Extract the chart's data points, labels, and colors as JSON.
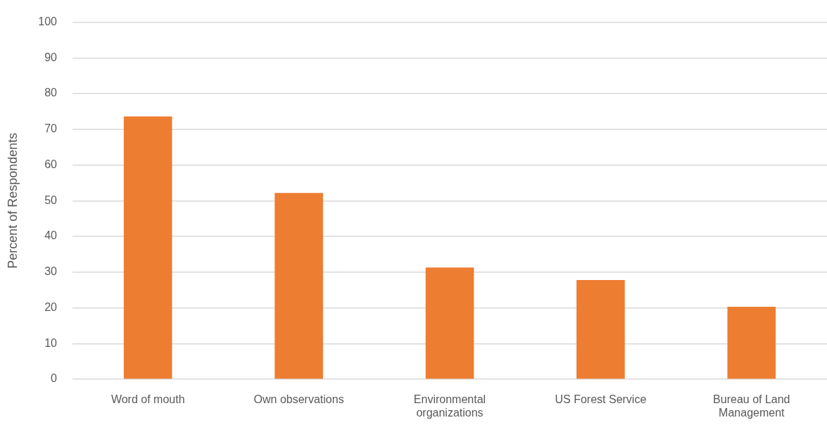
{
  "chart_data": {
    "type": "bar",
    "ylabel": "Percent of Respondents",
    "categories": [
      "Word of mouth",
      "Own observations",
      "Environmental organizations",
      "US Forest Service",
      "Bureau of Land Management"
    ],
    "values": [
      73.6,
      52.2,
      31.3,
      27.8,
      20.3
    ],
    "color": "#ed7d31",
    "ylim": [
      0,
      100
    ],
    "yticks": [
      0,
      10,
      20,
      30,
      40,
      50,
      60,
      70,
      80,
      90,
      100
    ],
    "grid": "y"
  }
}
